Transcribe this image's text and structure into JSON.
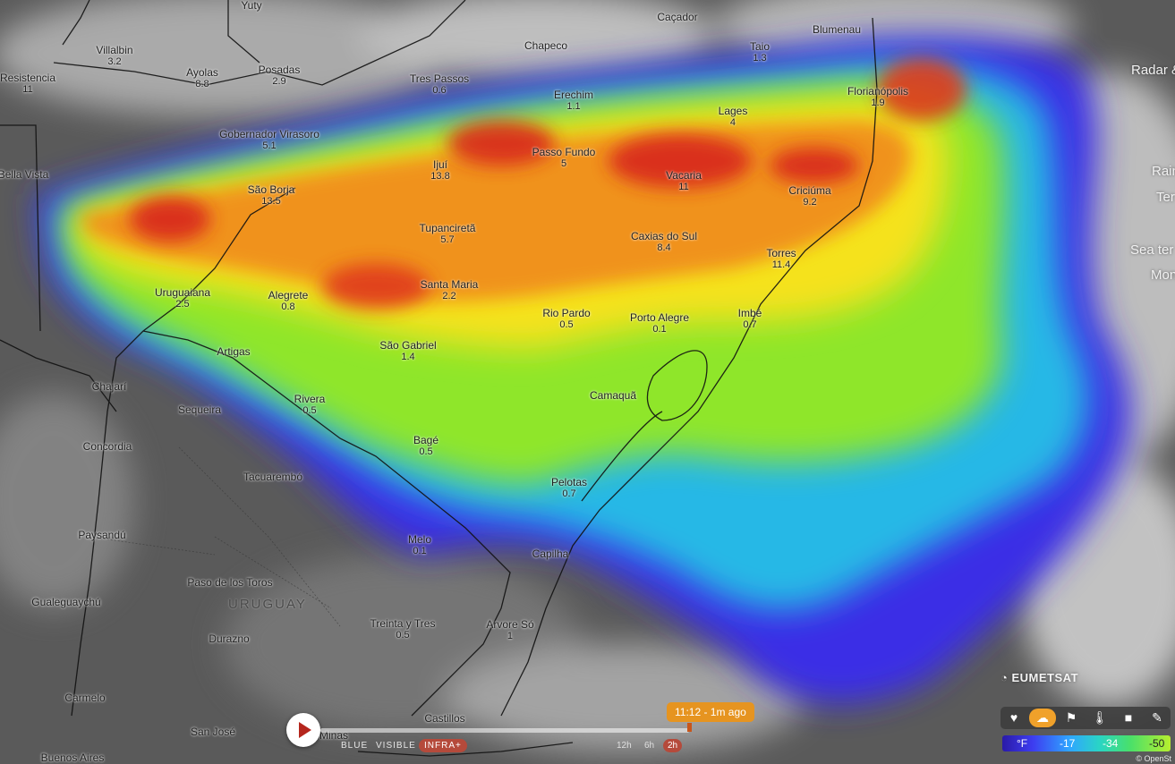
{
  "cities": [
    {
      "name": "Yuty",
      "value": ""
    },
    {
      "name": "Caçador",
      "value": ""
    },
    {
      "name": "Blumenau",
      "value": ""
    },
    {
      "name": "Chapeco",
      "value": ""
    },
    {
      "name": "Villalbin",
      "value": "3.2"
    },
    {
      "name": "Taio",
      "value": "1.3"
    },
    {
      "name": "Resistencia",
      "value": "11"
    },
    {
      "name": "Ayolas",
      "value": "8.8"
    },
    {
      "name": "Posadas",
      "value": "2.9"
    },
    {
      "name": "Tres Passos",
      "value": "0.6"
    },
    {
      "name": "Erechim",
      "value": "1.1"
    },
    {
      "name": "Florianópolis",
      "value": "1.9"
    },
    {
      "name": "Lages",
      "value": "4"
    },
    {
      "name": "Gobernador Virasoro",
      "value": "5.1"
    },
    {
      "name": "Passo Fundo",
      "value": "5"
    },
    {
      "name": "Bella Vista",
      "value": ""
    },
    {
      "name": "Ijuí",
      "value": "13.8"
    },
    {
      "name": "Vacaria",
      "value": "11"
    },
    {
      "name": "Criciúma",
      "value": "9.2"
    },
    {
      "name": "São Borja",
      "value": "13.5"
    },
    {
      "name": "Tupanciretã",
      "value": "5.7"
    },
    {
      "name": "Caxias do Sul",
      "value": "8.4"
    },
    {
      "name": "Torres",
      "value": "11.4"
    },
    {
      "name": "Uruguaiana",
      "value": "2.5"
    },
    {
      "name": "Alegrete",
      "value": "0.8"
    },
    {
      "name": "Santa Maria",
      "value": "2.2"
    },
    {
      "name": "Rio Pardo",
      "value": "0.5"
    },
    {
      "name": "Porto Alegre",
      "value": "0.1"
    },
    {
      "name": "Imbé",
      "value": "0.7"
    },
    {
      "name": "São Gabriel",
      "value": "1.4"
    },
    {
      "name": "Artigas",
      "value": ""
    },
    {
      "name": "Chajarí",
      "value": ""
    },
    {
      "name": "Camaquã",
      "value": ""
    },
    {
      "name": "Rivera",
      "value": "0.5"
    },
    {
      "name": "Sequeira",
      "value": ""
    },
    {
      "name": "Concordia",
      "value": ""
    },
    {
      "name": "Bagé",
      "value": "0.5"
    },
    {
      "name": "Tacuarembó",
      "value": ""
    },
    {
      "name": "Pelotas",
      "value": "0.7"
    },
    {
      "name": "Paysandú",
      "value": ""
    },
    {
      "name": "Melo",
      "value": "0.1"
    },
    {
      "name": "Capilha",
      "value": ""
    },
    {
      "name": "Paso de los Toros",
      "value": ""
    },
    {
      "name": "Gualeguaychú",
      "value": ""
    },
    {
      "name": "Treinta y Tres",
      "value": "0.5"
    },
    {
      "name": "Arvore Só",
      "value": "1"
    },
    {
      "name": "Durazno",
      "value": ""
    },
    {
      "name": "Carmelo",
      "value": ""
    },
    {
      "name": "Castillos",
      "value": ""
    },
    {
      "name": "San José",
      "value": ""
    },
    {
      "name": "Minas",
      "value": ""
    },
    {
      "name": "Buenos Aires",
      "value": ""
    }
  ],
  "country_label": "URUGUAY",
  "edge_labels": [
    "Radar &",
    "Rain",
    "Ter",
    "Sea ter",
    "Mon"
  ],
  "provider": "EUMETSAT",
  "attribution": "© OpenSt",
  "timeline": {
    "time_label": "11:12 - 1m ago",
    "layers": [
      "BLUE",
      "VISIBLE",
      "INFRA+"
    ],
    "active_layer": "INFRA+",
    "ranges": [
      "12h",
      "6h",
      "2h"
    ],
    "active_range": "2h",
    "progress": 1.0
  },
  "toolbar": {
    "tools": [
      "heart-icon",
      "satellite-cloud-icon",
      "flag-icon",
      "thermometer-icon",
      "camera-icon",
      "pin-icon"
    ],
    "active_tool": "satellite-cloud-icon"
  },
  "legend": {
    "unit": "°F",
    "ticks": [
      "-17",
      "-34",
      "-50"
    ]
  },
  "colors": {
    "active_accent": "#f0a12a",
    "time_bubble": "#e69420",
    "active_tab": "#b54a3b",
    "play_icon": "#b5261d"
  }
}
